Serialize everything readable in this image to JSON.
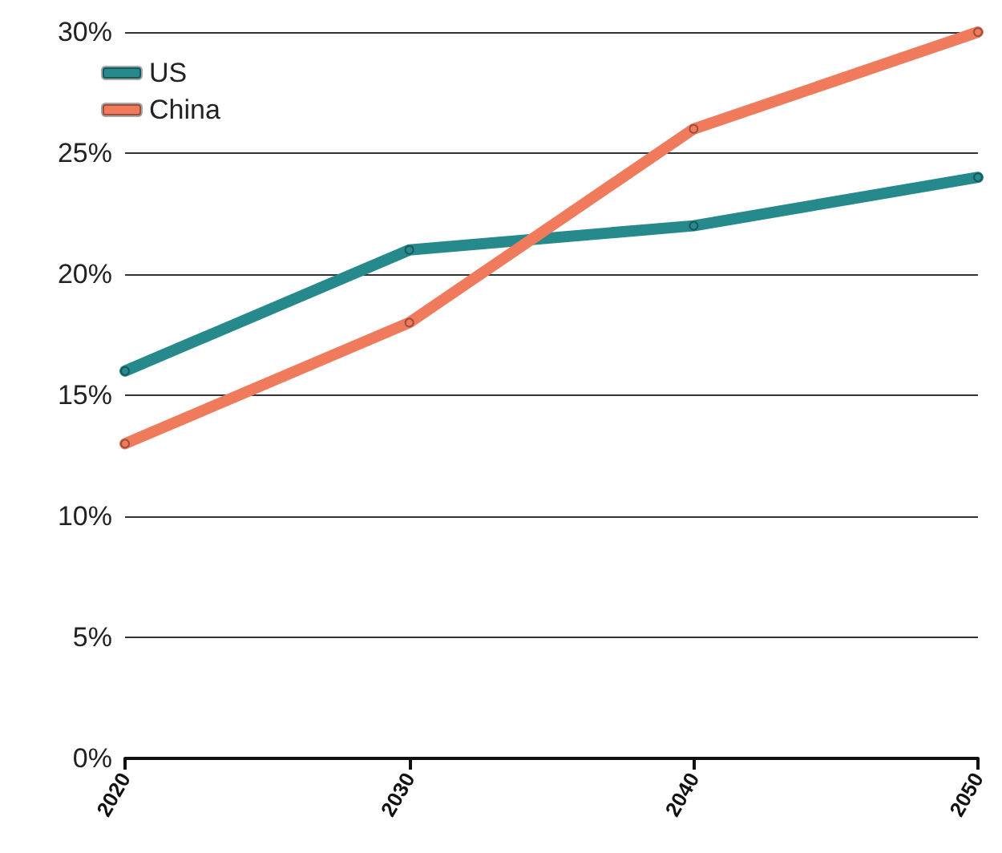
{
  "chart_data": {
    "type": "line",
    "categories": [
      "2020",
      "2030",
      "2040",
      "2050"
    ],
    "series": [
      {
        "name": "US",
        "color": "#268a8c",
        "values": [
          16,
          21,
          22,
          24
        ]
      },
      {
        "name": "China",
        "color": "#f07a5c",
        "values": [
          13,
          18,
          26,
          30
        ]
      }
    ],
    "ylim": [
      0,
      30
    ],
    "yticks": [
      {
        "value": 0,
        "label": "0%"
      },
      {
        "value": 5,
        "label": "5%"
      },
      {
        "value": 10,
        "label": "10%"
      },
      {
        "value": 15,
        "label": "15%"
      },
      {
        "value": 20,
        "label": "20%"
      },
      {
        "value": 25,
        "label": "25%"
      },
      {
        "value": 30,
        "label": "30%"
      }
    ],
    "grid": "y",
    "legend": "top left",
    "marker": "circle",
    "line_style": "solid"
  }
}
